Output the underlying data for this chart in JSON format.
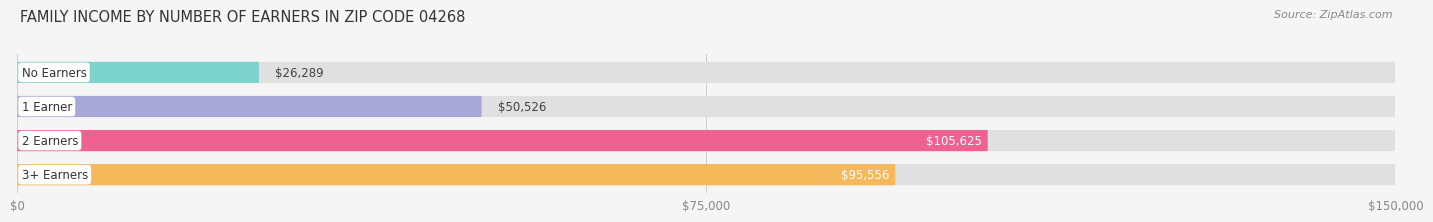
{
  "title": "FAMILY INCOME BY NUMBER OF EARNERS IN ZIP CODE 04268",
  "source": "Source: ZipAtlas.com",
  "categories": [
    "No Earners",
    "1 Earner",
    "2 Earners",
    "3+ Earners"
  ],
  "values": [
    26289,
    50526,
    105625,
    95556
  ],
  "bar_colors": [
    "#7dd4cc",
    "#a8a8d8",
    "#f06090",
    "#f5b85a"
  ],
  "value_labels": [
    "$26,289",
    "$50,526",
    "$105,625",
    "$95,556"
  ],
  "xmax": 150000,
  "xticks": [
    0,
    75000,
    150000
  ],
  "xticklabels": [
    "$0",
    "$75,000",
    "$150,000"
  ],
  "background_color": "#f5f5f5",
  "bar_background_color": "#e0e0e0",
  "title_fontsize": 10.5,
  "source_fontsize": 8,
  "bar_height": 0.62,
  "label_inside_threshold": 0.5
}
